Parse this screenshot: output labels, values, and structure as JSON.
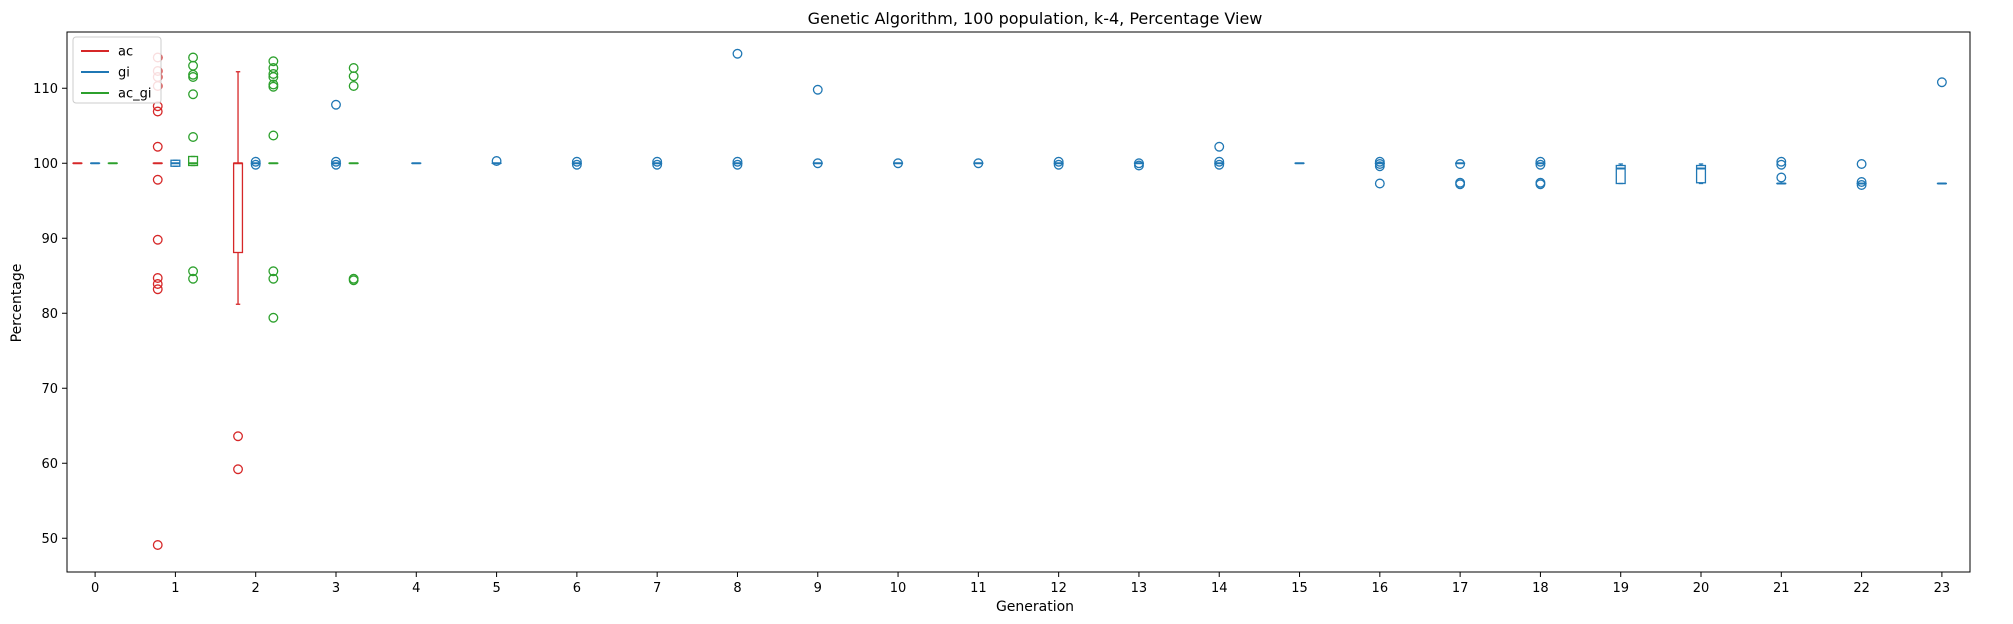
{
  "chart_data": {
    "type": "boxplot",
    "title": "Genetic Algorithm, 100 population, k-4, Percentage View",
    "xlabel": "Generation",
    "ylabel": "Percentage",
    "categories": [
      "0",
      "1",
      "2",
      "3",
      "4",
      "5",
      "6",
      "7",
      "8",
      "9",
      "10",
      "11",
      "12",
      "13",
      "14",
      "15",
      "16",
      "17",
      "18",
      "19",
      "20",
      "21",
      "22",
      "23"
    ],
    "ylim": [
      45.5,
      117.5
    ],
    "yticks": [
      50,
      60,
      70,
      80,
      90,
      100,
      110
    ],
    "grid": false,
    "legend": {
      "placement": "top-left"
    },
    "series": [
      {
        "name": "ac",
        "color": "#d62728",
        "generations": [
          {
            "gen": 0,
            "q1": 100,
            "median": 100,
            "q3": 100,
            "whisker_low": 100,
            "whisker_high": 100,
            "outliers": []
          },
          {
            "gen": 1,
            "q1": 100,
            "median": 100,
            "q3": 100,
            "whisker_low": 100,
            "whisker_high": 100,
            "outliers": [
              114.1,
              112.3,
              111.5,
              110.3,
              107.6,
              106.9,
              102.2,
              97.8,
              89.8,
              84.7,
              83.9,
              83.2,
              49.1
            ]
          },
          {
            "gen": 2,
            "q1": 88.1,
            "median": 100,
            "q3": 100,
            "whisker_low": 81.2,
            "whisker_high": 112.2,
            "outliers": [
              63.6,
              59.2
            ]
          }
        ]
      },
      {
        "name": "gi",
        "color": "#1f77b4",
        "generations": [
          {
            "gen": 0,
            "q1": 100,
            "median": 100,
            "q3": 100,
            "whisker_low": 100,
            "whisker_high": 100,
            "outliers": []
          },
          {
            "gen": 1,
            "q1": 99.6,
            "median": 100,
            "q3": 100.4,
            "whisker_low": 99.6,
            "whisker_high": 100.4,
            "outliers": []
          },
          {
            "gen": 2,
            "q1": 100,
            "median": 100,
            "q3": 100,
            "whisker_low": 100,
            "whisker_high": 100,
            "outliers": [
              100.2,
              99.8
            ]
          },
          {
            "gen": 3,
            "q1": 100,
            "median": 100,
            "q3": 100,
            "whisker_low": 100,
            "whisker_high": 100,
            "outliers": [
              107.8,
              100.2,
              99.8
            ]
          },
          {
            "gen": 4,
            "q1": 100,
            "median": 100,
            "q3": 100,
            "whisker_low": 100,
            "whisker_high": 100,
            "outliers": []
          },
          {
            "gen": 5,
            "q1": 100,
            "median": 100,
            "q3": 100,
            "whisker_low": 100,
            "whisker_high": 100,
            "outliers": [
              100.3
            ]
          },
          {
            "gen": 6,
            "q1": 100,
            "median": 100,
            "q3": 100,
            "whisker_low": 100,
            "whisker_high": 100,
            "outliers": [
              100.2,
              99.8
            ]
          },
          {
            "gen": 7,
            "q1": 100,
            "median": 100,
            "q3": 100,
            "whisker_low": 100,
            "whisker_high": 100,
            "outliers": [
              100.2,
              99.8
            ]
          },
          {
            "gen": 8,
            "q1": 100,
            "median": 100,
            "q3": 100,
            "whisker_low": 100,
            "whisker_high": 100,
            "outliers": [
              114.6,
              100.2,
              99.8
            ]
          },
          {
            "gen": 9,
            "q1": 100,
            "median": 100,
            "q3": 100,
            "whisker_low": 100,
            "whisker_high": 100,
            "outliers": [
              109.8,
              100
            ]
          },
          {
            "gen": 10,
            "q1": 100,
            "median": 100,
            "q3": 100,
            "whisker_low": 100,
            "whisker_high": 100,
            "outliers": [
              100
            ]
          },
          {
            "gen": 11,
            "q1": 100,
            "median": 100,
            "q3": 100,
            "whisker_low": 100,
            "whisker_high": 100,
            "outliers": [
              100
            ]
          },
          {
            "gen": 12,
            "q1": 100,
            "median": 100,
            "q3": 100,
            "whisker_low": 100,
            "whisker_high": 100,
            "outliers": [
              100.2,
              99.8
            ]
          },
          {
            "gen": 13,
            "q1": 100,
            "median": 100,
            "q3": 100,
            "whisker_low": 100,
            "whisker_high": 100,
            "outliers": [
              100,
              99.7
            ]
          },
          {
            "gen": 14,
            "q1": 100,
            "median": 100,
            "q3": 100,
            "whisker_low": 100,
            "whisker_high": 100,
            "outliers": [
              102.2,
              100.2,
              99.8
            ]
          },
          {
            "gen": 15,
            "q1": 100,
            "median": 100,
            "q3": 100,
            "whisker_low": 100,
            "whisker_high": 100,
            "outliers": []
          },
          {
            "gen": 16,
            "q1": 100,
            "median": 100,
            "q3": 100,
            "whisker_low": 100,
            "whisker_high": 100,
            "outliers": [
              100.2,
              99.9,
              99.6,
              97.3
            ]
          },
          {
            "gen": 17,
            "q1": 100,
            "median": 100,
            "q3": 100,
            "whisker_low": 100,
            "whisker_high": 100,
            "outliers": [
              99.9,
              97.4,
              97.2
            ]
          },
          {
            "gen": 18,
            "q1": 100,
            "median": 100,
            "q3": 100,
            "whisker_low": 100,
            "whisker_high": 100,
            "outliers": [
              100.2,
              99.8,
              97.4,
              97.2
            ]
          },
          {
            "gen": 19,
            "q1": 97.3,
            "median": 99.3,
            "q3": 99.7,
            "whisker_low": 97.3,
            "whisker_high": 99.9,
            "outliers": []
          },
          {
            "gen": 20,
            "q1": 97.4,
            "median": 99.3,
            "q3": 99.7,
            "whisker_low": 97.3,
            "whisker_high": 99.9,
            "outliers": []
          },
          {
            "gen": 21,
            "q1": 97.3,
            "median": 97.3,
            "q3": 97.3,
            "whisker_low": 97.3,
            "whisker_high": 97.3,
            "outliers": [
              100.2,
              99.8,
              98.1
            ]
          },
          {
            "gen": 22,
            "q1": 97.3,
            "median": 97.3,
            "q3": 97.3,
            "whisker_low": 97.3,
            "whisker_high": 97.3,
            "outliers": [
              99.9,
              97.5,
              97.1
            ]
          },
          {
            "gen": 23,
            "q1": 97.3,
            "median": 97.3,
            "q3": 97.3,
            "whisker_low": 97.3,
            "whisker_high": 97.3,
            "outliers": [
              110.8
            ]
          }
        ]
      },
      {
        "name": "ac_gi",
        "color": "#2ca02c",
        "generations": [
          {
            "gen": 0,
            "q1": 100,
            "median": 100,
            "q3": 100,
            "whisker_low": 100,
            "whisker_high": 100,
            "outliers": []
          },
          {
            "gen": 1,
            "q1": 99.7,
            "median": 100,
            "q3": 100.9,
            "whisker_low": 99.7,
            "whisker_high": 100.9,
            "outliers": [
              114.1,
              113,
              111.8,
              111.5,
              109.2,
              103.5,
              85.6,
              84.6
            ]
          },
          {
            "gen": 2,
            "q1": 100,
            "median": 100,
            "q3": 100,
            "whisker_low": 100,
            "whisker_high": 100,
            "outliers": [
              113.6,
              112.7,
              111.9,
              111.5,
              110.5,
              110.2,
              103.7,
              85.6,
              84.6,
              79.4
            ]
          },
          {
            "gen": 3,
            "q1": 100,
            "median": 100,
            "q3": 100,
            "whisker_low": 100,
            "whisker_high": 100,
            "outliers": [
              112.7,
              111.6,
              110.3,
              84.6,
              84.4
            ]
          }
        ]
      }
    ]
  }
}
